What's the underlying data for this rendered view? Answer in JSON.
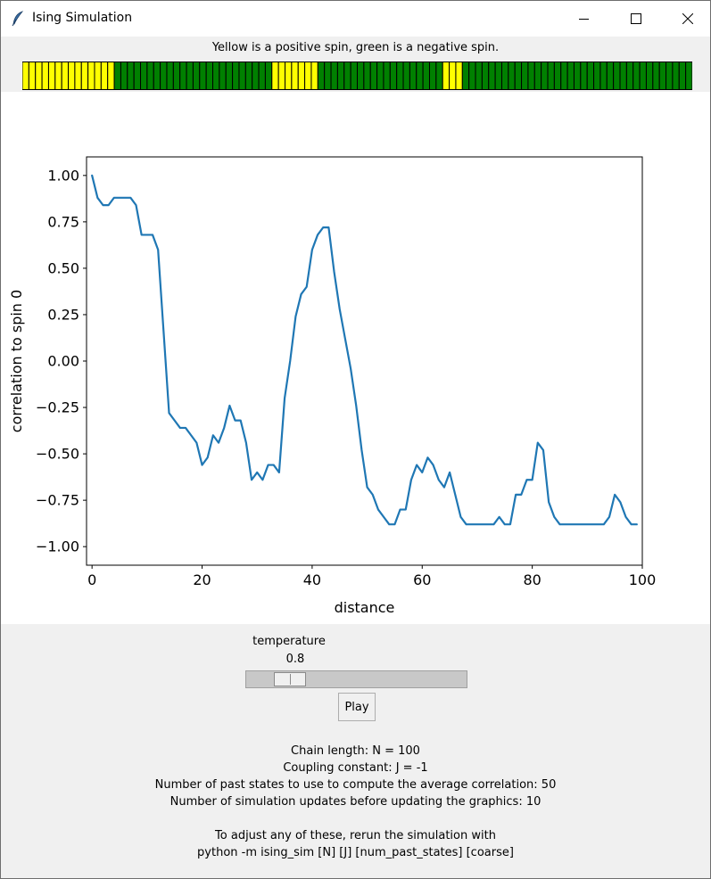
{
  "window": {
    "title": "Ising Simulation",
    "icons": {
      "app": "feather-icon",
      "minimize": "minimize-icon",
      "maximize": "maximize-icon",
      "close": "close-icon"
    }
  },
  "header": {
    "legend_text": "Yellow is a positive spin, green is a negative spin."
  },
  "spin_chain": {
    "positive_color": "#ffff00",
    "negative_color": "#008000",
    "spins": [
      1,
      1,
      1,
      1,
      1,
      1,
      1,
      1,
      1,
      1,
      1,
      1,
      1,
      1,
      -1,
      -1,
      -1,
      -1,
      -1,
      -1,
      -1,
      -1,
      -1,
      -1,
      -1,
      -1,
      -1,
      -1,
      -1,
      -1,
      -1,
      -1,
      -1,
      -1,
      -1,
      -1,
      -1,
      -1,
      1,
      1,
      1,
      1,
      1,
      1,
      1,
      -1,
      -1,
      -1,
      -1,
      -1,
      -1,
      -1,
      -1,
      -1,
      -1,
      -1,
      -1,
      -1,
      -1,
      -1,
      -1,
      -1,
      -1,
      -1,
      1,
      1,
      1,
      -1,
      -1,
      -1,
      -1,
      -1,
      -1,
      -1,
      -1,
      -1,
      -1,
      -1,
      -1,
      -1,
      -1,
      -1,
      -1,
      -1,
      -1,
      -1,
      -1,
      -1,
      -1,
      -1,
      -1,
      -1,
      -1,
      -1,
      -1,
      -1,
      -1,
      -1,
      -1,
      -1,
      -1,
      -1
    ]
  },
  "chart_data": {
    "type": "line",
    "title": "",
    "xlabel": "distance",
    "ylabel": "correlation to spin 0",
    "xlim": [
      -1,
      100
    ],
    "ylim": [
      -1.1,
      1.1
    ],
    "xticks": [
      0,
      20,
      40,
      60,
      80,
      100
    ],
    "xtick_labels": [
      "0",
      "20",
      "40",
      "60",
      "80",
      "100"
    ],
    "yticks": [
      1.0,
      0.75,
      0.5,
      0.25,
      0.0,
      -0.25,
      -0.5,
      -0.75,
      -1.0
    ],
    "ytick_labels": [
      "1.00",
      "0.75",
      "0.50",
      "0.25",
      "0.00",
      "−0.25",
      "−0.50",
      "−0.75",
      "−1.00"
    ],
    "line_color": "#1f77b4",
    "grid": false,
    "x": [
      0,
      1,
      2,
      3,
      4,
      5,
      6,
      7,
      8,
      9,
      10,
      11,
      12,
      13,
      14,
      15,
      16,
      17,
      18,
      19,
      20,
      21,
      22,
      23,
      24,
      25,
      26,
      27,
      28,
      29,
      30,
      31,
      32,
      33,
      34,
      35,
      36,
      37,
      38,
      39,
      40,
      41,
      42,
      43,
      44,
      45,
      46,
      47,
      48,
      49,
      50,
      51,
      52,
      53,
      54,
      55,
      56,
      57,
      58,
      59,
      60,
      61,
      62,
      63,
      64,
      65,
      66,
      67,
      68,
      69,
      70,
      71,
      72,
      73,
      74,
      75,
      76,
      77,
      78,
      79,
      80,
      81,
      82,
      83,
      84,
      85,
      86,
      87,
      88,
      89,
      90,
      91,
      92,
      93,
      94,
      95,
      96,
      97,
      98,
      99
    ],
    "y": [
      1.0,
      0.88,
      0.84,
      0.84,
      0.88,
      0.88,
      0.88,
      0.88,
      0.84,
      0.68,
      0.68,
      0.68,
      0.6,
      0.16,
      -0.28,
      -0.32,
      -0.36,
      -0.36,
      -0.4,
      -0.44,
      -0.56,
      -0.52,
      -0.4,
      -0.44,
      -0.36,
      -0.24,
      -0.32,
      -0.32,
      -0.44,
      -0.64,
      -0.6,
      -0.64,
      -0.56,
      -0.56,
      -0.6,
      -0.2,
      0.0,
      0.24,
      0.36,
      0.4,
      0.6,
      0.68,
      0.72,
      0.72,
      0.48,
      0.28,
      0.12,
      -0.04,
      -0.24,
      -0.48,
      -0.68,
      -0.72,
      -0.8,
      -0.84,
      -0.88,
      -0.88,
      -0.8,
      -0.8,
      -0.64,
      -0.56,
      -0.6,
      -0.52,
      -0.56,
      -0.64,
      -0.68,
      -0.6,
      -0.72,
      -0.84,
      -0.88,
      -0.88,
      -0.88,
      -0.88,
      -0.88,
      -0.88,
      -0.84,
      -0.88,
      -0.88,
      -0.72,
      -0.72,
      -0.64,
      -0.64,
      -0.44,
      -0.48,
      -0.76,
      -0.84,
      -0.88,
      -0.88,
      -0.88,
      -0.88,
      -0.88,
      -0.88,
      -0.88,
      -0.88,
      -0.88,
      -0.84,
      -0.72,
      -0.76,
      -0.84,
      -0.88,
      -0.88
    ]
  },
  "controls": {
    "temperature_label": "temperature",
    "temperature_value": "0.8",
    "temperature_fraction": 0.14,
    "play_label": "Play"
  },
  "info": {
    "line1": "Chain length: N = 100",
    "line2": "Coupling constant: J = -1",
    "line3": "Number of past states to use to compute the average correlation: 50",
    "line4": "Number of simulation updates before updating the graphics: 10",
    "line5": "To adjust any of these, rerun the simulation with",
    "line6": "python -m ising_sim [N] [J] [num_past_states] [coarse]"
  }
}
